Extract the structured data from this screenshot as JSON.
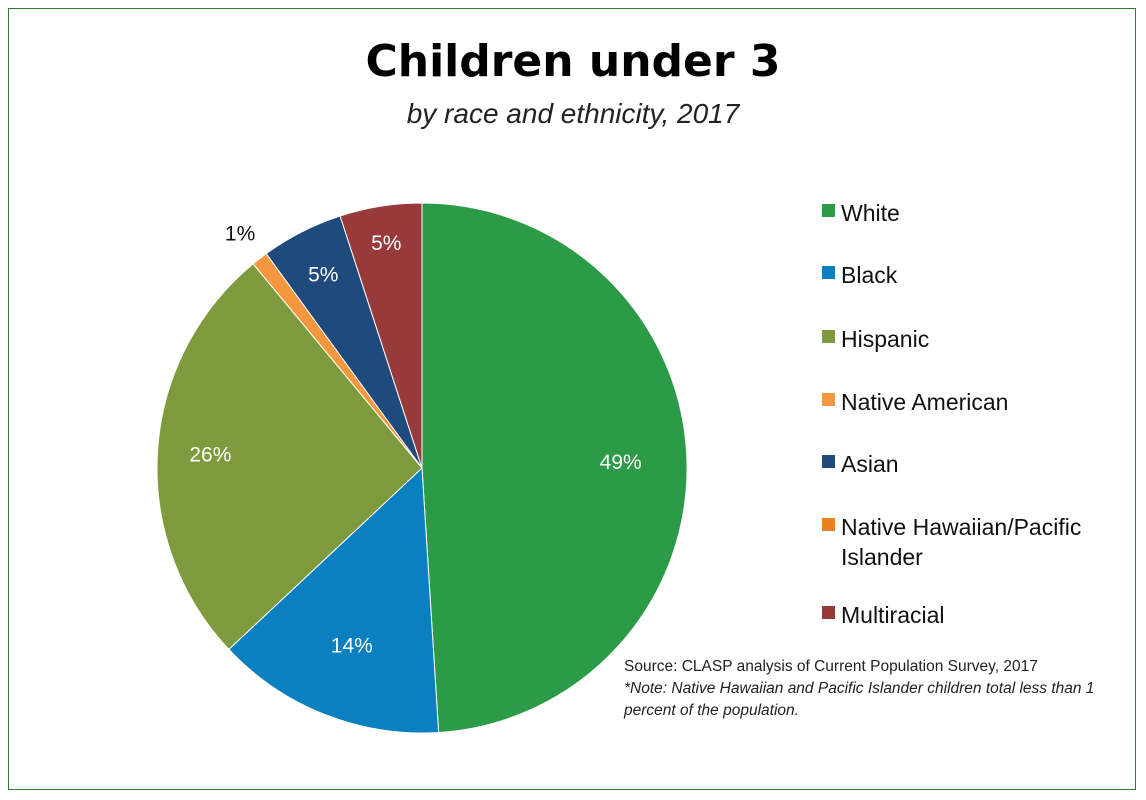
{
  "chart_data": {
    "type": "pie",
    "title": "Children under 3",
    "subtitle": "by race and ethnicity, 2017",
    "slices": [
      {
        "name": "White",
        "value": 49,
        "label": "49%",
        "color": "#2c9b48"
      },
      {
        "name": "Black",
        "value": 14,
        "label": "14%",
        "color": "#0a80c1"
      },
      {
        "name": "Hispanic",
        "value": 26,
        "label": "26%",
        "color": "#7d9a3c"
      },
      {
        "name": "Native American",
        "value": 1,
        "label": "1%",
        "color": "#f5973f"
      },
      {
        "name": "Asian",
        "value": 5,
        "label": "5%",
        "color": "#1f4a7c"
      },
      {
        "name": "Native Hawaiian/Pacific Islander",
        "value": 0,
        "label": "",
        "color": "#e8821e"
      },
      {
        "name": "Multiracial",
        "value": 5,
        "label": "5%",
        "color": "#993a3a"
      }
    ],
    "legend_position": "right"
  },
  "source": "Source: CLASP analysis of Current Population Survey, 2017",
  "note": "*Note: Native Hawaiian and Pacific Islander children total less than 1 percent of the population."
}
